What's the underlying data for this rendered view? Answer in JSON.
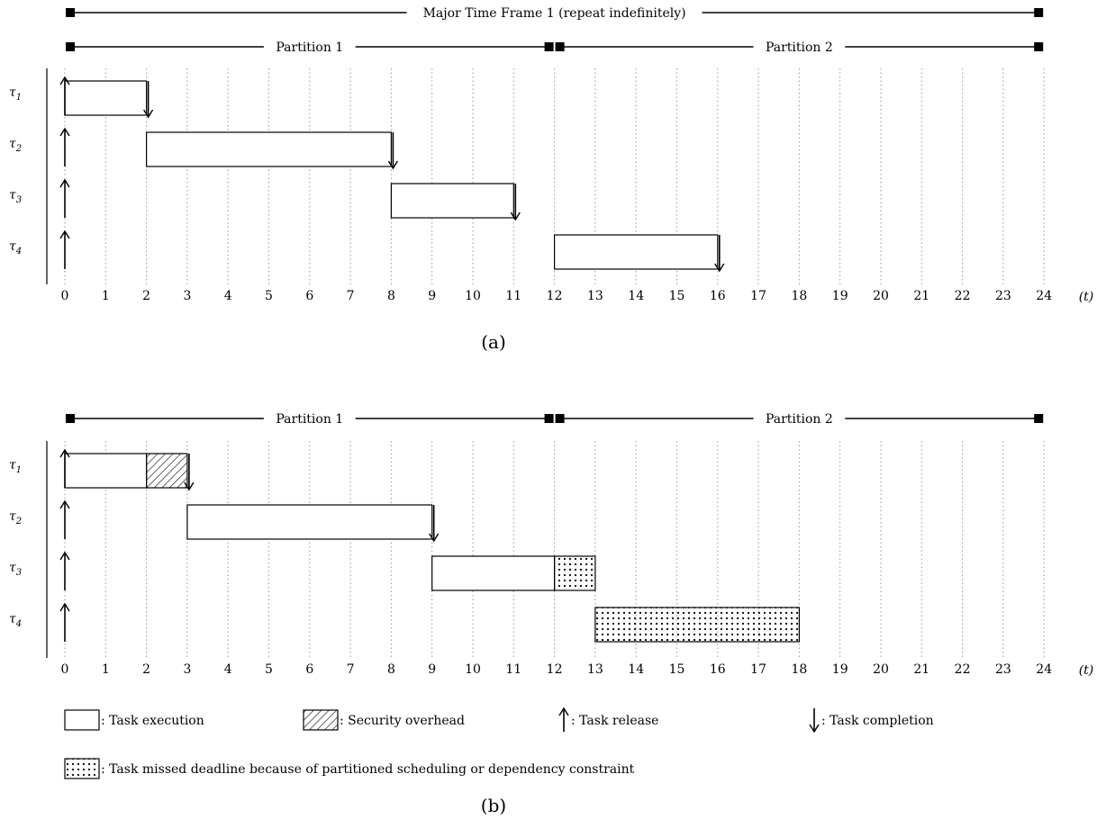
{
  "scale": {
    "t_min": 0,
    "t_max": 24,
    "unit_label": "(t)"
  },
  "ticks": [
    0,
    1,
    2,
    3,
    4,
    5,
    6,
    7,
    8,
    9,
    10,
    11,
    12,
    13,
    14,
    15,
    16,
    17,
    18,
    19,
    20,
    21,
    22,
    23,
    24
  ],
  "panels": [
    {
      "id": "a",
      "caption": "(a)",
      "frames": [
        {
          "label": "Major Time Frame 1 (repeat indefinitely)",
          "start": 0,
          "end": 24
        },
        {
          "label": "Partition 1",
          "start": 0,
          "end": 12
        },
        {
          "label": "Partition 2",
          "start": 12,
          "end": 24
        }
      ],
      "tasks": [
        {
          "symbol": "τ",
          "index": "1",
          "release": 0,
          "blocks": [
            {
              "kind": "execution",
              "start": 0,
              "end": 2
            }
          ],
          "completion": 2
        },
        {
          "symbol": "τ",
          "index": "2",
          "release": 0,
          "blocks": [
            {
              "kind": "execution",
              "start": 2,
              "end": 8
            }
          ],
          "completion": 8
        },
        {
          "symbol": "τ",
          "index": "3",
          "release": 0,
          "blocks": [
            {
              "kind": "execution",
              "start": 8,
              "end": 11
            }
          ],
          "completion": 11
        },
        {
          "symbol": "τ",
          "index": "4",
          "release": 0,
          "blocks": [
            {
              "kind": "execution",
              "start": 12,
              "end": 16
            }
          ],
          "completion": 16
        }
      ]
    },
    {
      "id": "b",
      "caption": "(b)",
      "frames": [
        {
          "label": "Partition 1",
          "start": 0,
          "end": 12
        },
        {
          "label": "Partition 2",
          "start": 12,
          "end": 24
        }
      ],
      "tasks": [
        {
          "symbol": "τ",
          "index": "1",
          "release": 0,
          "blocks": [
            {
              "kind": "execution",
              "start": 0,
              "end": 2
            },
            {
              "kind": "overhead",
              "start": 2,
              "end": 3
            }
          ],
          "completion": 3
        },
        {
          "symbol": "τ",
          "index": "2",
          "release": 0,
          "blocks": [
            {
              "kind": "execution",
              "start": 3,
              "end": 9
            }
          ],
          "completion": 9
        },
        {
          "symbol": "τ",
          "index": "3",
          "release": 0,
          "blocks": [
            {
              "kind": "execution",
              "start": 9,
              "end": 12
            },
            {
              "kind": "missed",
              "start": 12,
              "end": 13
            }
          ],
          "completion": null
        },
        {
          "symbol": "τ",
          "index": "4",
          "release": 0,
          "blocks": [
            {
              "kind": "missed",
              "start": 13,
              "end": 18
            }
          ],
          "completion": null
        }
      ]
    }
  ],
  "legend": [
    {
      "kind": "execution",
      "label": ": Task execution"
    },
    {
      "kind": "overhead",
      "label": ": Security overhead"
    },
    {
      "kind": "release",
      "label": ": Task release"
    },
    {
      "kind": "completion",
      "label": ": Task completion"
    },
    {
      "kind": "missed",
      "label": ": Task missed deadline because of partitioned scheduling or dependency constraint"
    }
  ]
}
